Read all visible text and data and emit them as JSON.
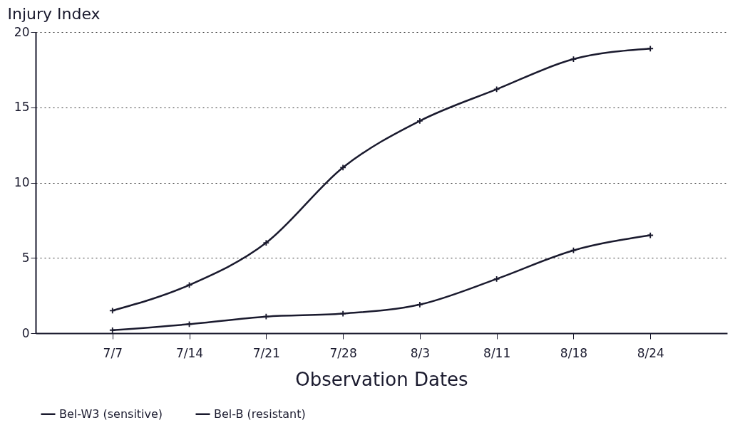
{
  "chart_data": {
    "type": "line",
    "ylabel": "Injury Index",
    "xlabel": "Observation Dates",
    "categories": [
      "7/7",
      "7/14",
      "7/21",
      "7/28",
      "8/3",
      "8/11",
      "8/18",
      "8/24"
    ],
    "series": [
      {
        "name": "Bel-W3 (sensitive)",
        "color": "#1a1a2e",
        "values": [
          1.5,
          3.2,
          6.0,
          11.0,
          14.1,
          16.2,
          18.2,
          18.9
        ]
      },
      {
        "name": "Bel-B (resistant)",
        "color": "#1a1a2e",
        "values": [
          0.2,
          0.6,
          1.1,
          1.3,
          1.9,
          3.6,
          5.5,
          6.5
        ]
      }
    ],
    "ylim": [
      0,
      20
    ],
    "yticks": [
      0,
      5,
      10,
      15,
      20
    ],
    "grid": "y",
    "legend": "bottom",
    "marker": "cross",
    "line_style": "solid"
  }
}
